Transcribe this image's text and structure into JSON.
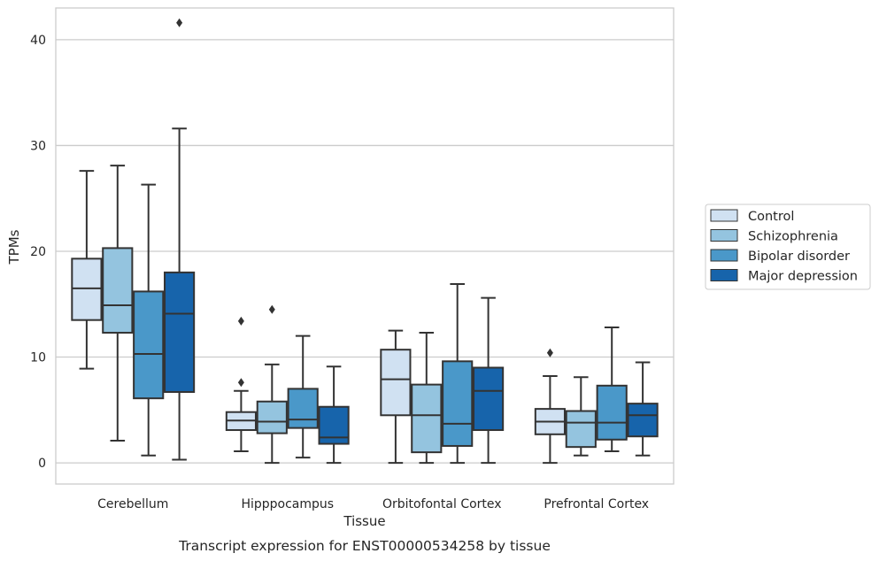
{
  "chart_data": {
    "type": "box",
    "caption": "Transcript expression for ENST00000534258 by tissue",
    "xlabel": "Tissue",
    "ylabel": "TPMs",
    "ylim": [
      -2,
      43
    ],
    "yticks": [
      0,
      10,
      20,
      30,
      40
    ],
    "grid": "horizontal",
    "legend_position": "right",
    "categories": [
      "Cerebellum",
      "Hipppocampus",
      "Orbitofontal Cortex",
      "Prefrontal Cortex"
    ],
    "series": [
      {
        "name": "Control",
        "color": "#d0e1f2",
        "boxes": [
          {
            "whisker_low": 8.9,
            "q1": 13.5,
            "median": 16.5,
            "q3": 19.3,
            "whisker_high": 27.6,
            "outliers": []
          },
          {
            "whisker_low": 1.1,
            "q1": 3.1,
            "median": 4.0,
            "q3": 4.8,
            "whisker_high": 6.8,
            "outliers": [
              7.6,
              13.4
            ]
          },
          {
            "whisker_low": 0.0,
            "q1": 4.5,
            "median": 7.9,
            "q3": 10.7,
            "whisker_high": 12.5,
            "outliers": []
          },
          {
            "whisker_low": 0.0,
            "q1": 2.7,
            "median": 3.9,
            "q3": 5.1,
            "whisker_high": 8.2,
            "outliers": [
              10.4
            ]
          }
        ]
      },
      {
        "name": "Schizophrenia",
        "color": "#94c4df",
        "boxes": [
          {
            "whisker_low": 2.1,
            "q1": 12.3,
            "median": 14.9,
            "q3": 20.3,
            "whisker_high": 28.1,
            "outliers": []
          },
          {
            "whisker_low": 0.0,
            "q1": 2.8,
            "median": 3.9,
            "q3": 5.8,
            "whisker_high": 9.3,
            "outliers": [
              14.5
            ]
          },
          {
            "whisker_low": 0.0,
            "q1": 1.0,
            "median": 4.5,
            "q3": 7.4,
            "whisker_high": 12.3,
            "outliers": []
          },
          {
            "whisker_low": 0.7,
            "q1": 1.5,
            "median": 3.8,
            "q3": 4.9,
            "whisker_high": 8.1,
            "outliers": []
          }
        ]
      },
      {
        "name": "Bipolar disorder",
        "color": "#4a98c9",
        "boxes": [
          {
            "whisker_low": 0.7,
            "q1": 6.1,
            "median": 10.3,
            "q3": 16.2,
            "whisker_high": 26.3,
            "outliers": []
          },
          {
            "whisker_low": 0.5,
            "q1": 3.3,
            "median": 4.1,
            "q3": 7.0,
            "whisker_high": 12.0,
            "outliers": []
          },
          {
            "whisker_low": 0.0,
            "q1": 1.6,
            "median": 3.7,
            "q3": 9.6,
            "whisker_high": 16.9,
            "outliers": []
          },
          {
            "whisker_low": 1.1,
            "q1": 2.2,
            "median": 3.8,
            "q3": 7.3,
            "whisker_high": 12.8,
            "outliers": []
          }
        ]
      },
      {
        "name": "Major depression",
        "color": "#1764ab",
        "boxes": [
          {
            "whisker_low": 0.3,
            "q1": 6.7,
            "median": 14.1,
            "q3": 18.0,
            "whisker_high": 31.6,
            "outliers": [
              41.6
            ]
          },
          {
            "whisker_low": 0.0,
            "q1": 1.8,
            "median": 2.4,
            "q3": 5.3,
            "whisker_high": 9.1,
            "outliers": []
          },
          {
            "whisker_low": 0.0,
            "q1": 3.1,
            "median": 6.8,
            "q3": 9.0,
            "whisker_high": 15.6,
            "outliers": []
          },
          {
            "whisker_low": 0.7,
            "q1": 2.5,
            "median": 4.5,
            "q3": 5.6,
            "whisker_high": 9.5,
            "outliers": []
          }
        ]
      }
    ]
  }
}
